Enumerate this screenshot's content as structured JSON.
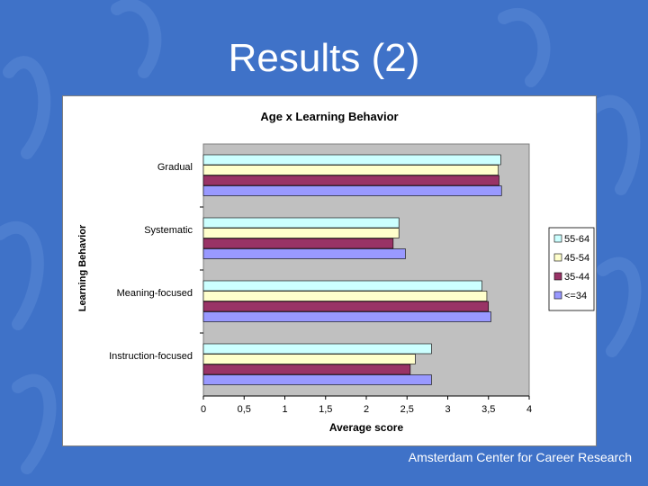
{
  "slide": {
    "title": "Results (2)",
    "footer": "Amsterdam Center for Career Research"
  },
  "colors": {
    "background": "#3f72c8",
    "plot_area": "#c0c0c0"
  },
  "chart_data": {
    "type": "bar",
    "orientation": "horizontal",
    "title": "Age x Learning Behavior",
    "xlabel": "Average score",
    "ylabel": "Learning Behavior",
    "xlim": [
      0,
      4
    ],
    "xticks": [
      {
        "value": 0,
        "label": "0"
      },
      {
        "value": 0.5,
        "label": "0,5"
      },
      {
        "value": 1,
        "label": "1"
      },
      {
        "value": 1.5,
        "label": "1,5"
      },
      {
        "value": 2,
        "label": "2"
      },
      {
        "value": 2.5,
        "label": "2,5"
      },
      {
        "value": 3,
        "label": "3"
      },
      {
        "value": 3.5,
        "label": "3,5"
      },
      {
        "value": 4,
        "label": "4"
      }
    ],
    "categories": [
      "Gradual",
      "Systematic",
      "Meaning-focused",
      "Instruction-focused"
    ],
    "series": [
      {
        "name": "55-64",
        "color": "#ccffff",
        "values": [
          3.65,
          2.4,
          3.42,
          2.8
        ]
      },
      {
        "name": "45-54",
        "color": "#ffffcc",
        "values": [
          3.62,
          2.4,
          3.48,
          2.6
        ]
      },
      {
        "name": "35-44",
        "color": "#993366",
        "values": [
          3.63,
          2.33,
          3.5,
          2.54
        ]
      },
      {
        "name": "<=34",
        "color": "#9999ff",
        "values": [
          3.66,
          2.48,
          3.53,
          2.8
        ]
      }
    ],
    "legend_position": "right",
    "grid": false
  }
}
